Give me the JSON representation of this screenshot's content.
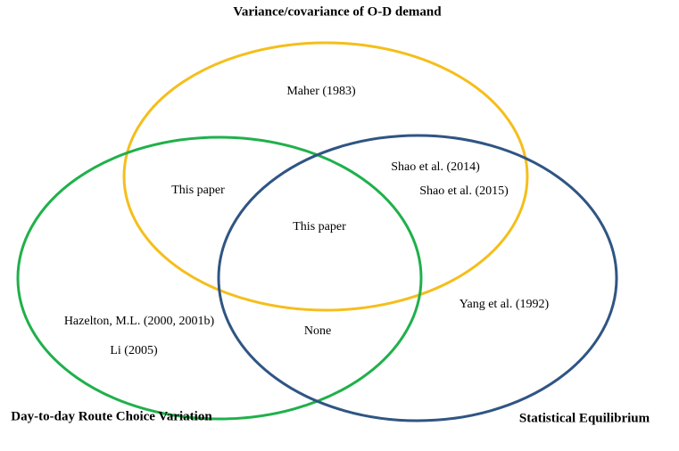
{
  "sets": [
    {
      "label": "Variance/covariance of O-D demand"
    },
    {
      "label": "Day-to-day Route Choice Variation"
    },
    {
      "label": "Statistical Equilibrium"
    }
  ],
  "regions": [
    {
      "texts": [
        "Maher (1983)"
      ]
    },
    {
      "texts": [
        "This paper"
      ]
    },
    {
      "texts": [
        "Shao et al. (2014)",
        "Shao et al. (2015)"
      ]
    },
    {
      "texts": [
        "This paper"
      ]
    },
    {
      "texts": [
        "Hazelton, M.L. (2000, 2001b)",
        "Li (2005)"
      ]
    },
    {
      "texts": [
        "None"
      ]
    },
    {
      "texts": [
        "Yang et al. (1992)"
      ]
    }
  ]
}
